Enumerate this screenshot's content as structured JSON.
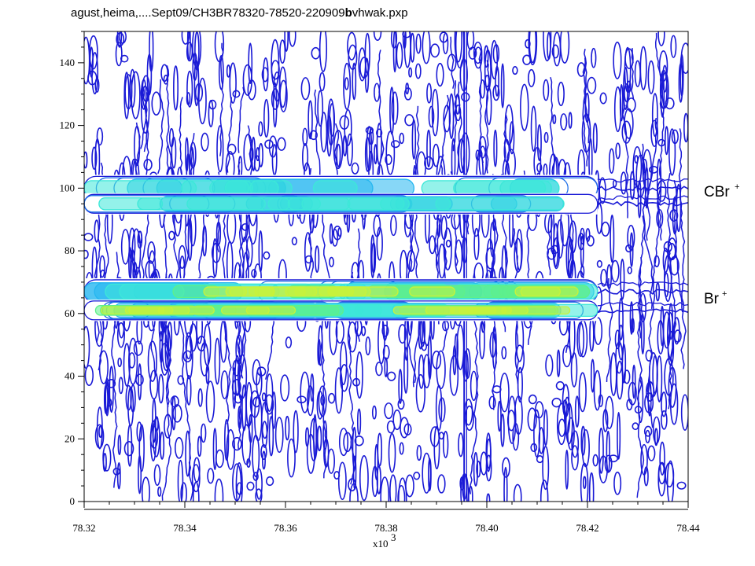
{
  "header": {
    "title_pre": "agust,heima,....Sept09/CH3BR78320-78520-220909",
    "title_bold": "b",
    "title_post": "vhwak.pxp"
  },
  "chart_data": {
    "type": "heatmap",
    "x": {
      "min": 78.32,
      "max": 78.44,
      "ticks": [
        78.32,
        78.34,
        78.36,
        78.38,
        78.4,
        78.42,
        78.44
      ],
      "tick_labels": [
        "78.32",
        "78.34",
        "78.36",
        "78.38",
        "78.40",
        "78.42",
        "78.44"
      ],
      "multiplier_base": "x10",
      "multiplier_exp": "3"
    },
    "y": {
      "min": 0,
      "max": 150,
      "ticks": [
        0,
        20,
        40,
        60,
        80,
        100,
        120,
        140
      ],
      "tick_labels": [
        "0",
        "20",
        "40",
        "60",
        "80",
        "100",
        "120",
        "140"
      ]
    },
    "bands": [
      {
        "label": "CBr",
        "charge": "+",
        "y_center": 100,
        "y_width": 2.5,
        "x_start": 78.32,
        "x_end": 78.422,
        "peak": 0.55
      },
      {
        "label": "",
        "charge": "",
        "y_center": 95,
        "y_width": 2.0,
        "x_start": 78.32,
        "x_end": 78.422,
        "peak": 0.5
      },
      {
        "label": "Br",
        "charge": "+",
        "y_center": 67,
        "y_width": 2.5,
        "x_start": 78.32,
        "x_end": 78.422,
        "peak": 0.9
      },
      {
        "label": "",
        "charge": "",
        "y_center": 61,
        "y_width": 2.0,
        "x_start": 78.32,
        "x_end": 78.422,
        "peak": 0.85
      }
    ],
    "contour_color": "#1a1ad6",
    "colormap": [
      "#1a1ad6",
      "#1f6fe8",
      "#25b6f0",
      "#3de8d8",
      "#5ef08a",
      "#c8f23a",
      "#ffe600"
    ],
    "grid": false
  }
}
